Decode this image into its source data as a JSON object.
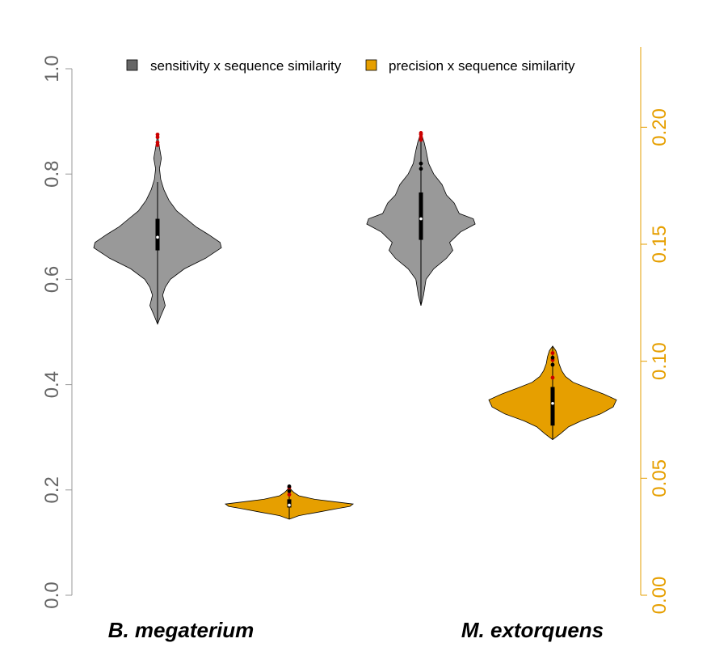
{
  "chart_data": {
    "type": "violin",
    "categories": [
      "B. megaterium",
      "M. extorquens"
    ],
    "left_axis": {
      "ylim": [
        0,
        1
      ],
      "ticks": [
        "0.0",
        "0.2",
        "0.4",
        "0.6",
        "0.8",
        "1.0"
      ],
      "color": "#666666"
    },
    "right_axis": {
      "ylim": [
        0,
        0.225
      ],
      "ticks": [
        "0.00",
        "0.05",
        "0.10",
        "0.15",
        "0.20"
      ],
      "color": "#E69F00"
    },
    "legend": {
      "placement": "top",
      "entries": [
        {
          "label": "sensitivity x sequence similarity",
          "color": "#666666"
        },
        {
          "label": "precision x sequence similarity",
          "color": "#E69F00"
        }
      ]
    },
    "series": [
      {
        "name": "sensitivity x sequence similarity",
        "axis": "left",
        "fill": "#999999",
        "violins": [
          {
            "category": "B. megaterium",
            "position": 1,
            "min": 0.515,
            "q1": 0.655,
            "median": 0.68,
            "q3": 0.715,
            "max": 0.785,
            "outliers": [
              0.855,
              0.86,
              0.87,
              0.875
            ],
            "profile": [
              [
                0.515,
                0.0
              ],
              [
                0.53,
                0.05
              ],
              [
                0.55,
                0.12
              ],
              [
                0.57,
                0.08
              ],
              [
                0.585,
                0.12
              ],
              [
                0.6,
                0.2
              ],
              [
                0.62,
                0.42
              ],
              [
                0.64,
                0.75
              ],
              [
                0.66,
                1.0
              ],
              [
                0.67,
                0.98
              ],
              [
                0.685,
                0.8
              ],
              [
                0.7,
                0.6
              ],
              [
                0.715,
                0.45
              ],
              [
                0.73,
                0.3
              ],
              [
                0.75,
                0.18
              ],
              [
                0.77,
                0.1
              ],
              [
                0.79,
                0.05
              ],
              [
                0.81,
                0.03
              ],
              [
                0.83,
                0.06
              ],
              [
                0.85,
                0.03
              ],
              [
                0.875,
                0.0
              ]
            ]
          },
          {
            "category": "M. extorquens",
            "position": 3,
            "min": 0.55,
            "q1": 0.675,
            "median": 0.715,
            "q3": 0.765,
            "max": 0.865,
            "outliers": [
              0.81,
              0.82,
              0.865,
              0.87,
              0.875,
              0.878
            ],
            "profile": [
              [
                0.55,
                0.0
              ],
              [
                0.57,
                0.04
              ],
              [
                0.6,
                0.08
              ],
              [
                0.62,
                0.2
              ],
              [
                0.64,
                0.4
              ],
              [
                0.655,
                0.5
              ],
              [
                0.67,
                0.45
              ],
              [
                0.69,
                0.62
              ],
              [
                0.705,
                0.85
              ],
              [
                0.715,
                0.82
              ],
              [
                0.725,
                0.6
              ],
              [
                0.745,
                0.52
              ],
              [
                0.76,
                0.4
              ],
              [
                0.78,
                0.33
              ],
              [
                0.8,
                0.2
              ],
              [
                0.82,
                0.12
              ],
              [
                0.845,
                0.08
              ],
              [
                0.86,
                0.05
              ],
              [
                0.878,
                0.0
              ]
            ]
          }
        ]
      },
      {
        "name": "precision x sequence similarity",
        "axis": "right",
        "fill": "#E69F00",
        "violins": [
          {
            "category": "B. megaterium",
            "position": 2,
            "min": 0.0325,
            "q1": 0.0375,
            "median": 0.0385,
            "q3": 0.041,
            "max": 0.0445,
            "outliers": [
              0.043,
              0.0445,
              0.046,
              0.0465
            ],
            "profile": [
              [
                0.0325,
                0.0
              ],
              [
                0.034,
                0.15
              ],
              [
                0.0355,
                0.45
              ],
              [
                0.037,
                0.75
              ],
              [
                0.038,
                0.95
              ],
              [
                0.039,
                1.0
              ],
              [
                0.04,
                0.7
              ],
              [
                0.041,
                0.4
              ],
              [
                0.0425,
                0.15
              ],
              [
                0.044,
                0.07
              ],
              [
                0.046,
                0.0
              ]
            ]
          },
          {
            "category": "M. extorquens",
            "position": 3,
            "min": 0.0665,
            "q1": 0.0725,
            "median": 0.082,
            "q3": 0.089,
            "max": 0.1065,
            "outliers": [
              0.093,
              0.0985,
              0.1005,
              0.1015,
              0.1035
            ],
            "profile": [
              [
                0.0665,
                0.0
              ],
              [
                0.069,
                0.12
              ],
              [
                0.072,
                0.25
              ],
              [
                0.0745,
                0.45
              ],
              [
                0.0775,
                0.75
              ],
              [
                0.0805,
                0.95
              ],
              [
                0.0835,
                1.0
              ],
              [
                0.086,
                0.8
              ],
              [
                0.0885,
                0.55
              ],
              [
                0.091,
                0.32
              ],
              [
                0.0935,
                0.2
              ],
              [
                0.096,
                0.14
              ],
              [
                0.099,
                0.1
              ],
              [
                0.102,
                0.08
              ],
              [
                0.1045,
                0.05
              ],
              [
                0.1065,
                0.0
              ]
            ]
          }
        ]
      }
    ]
  }
}
